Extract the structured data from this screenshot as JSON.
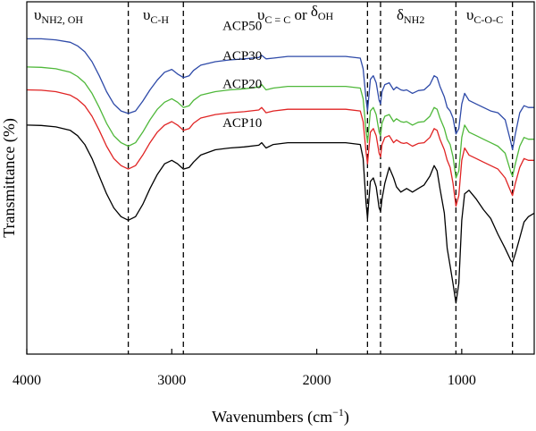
{
  "chart_data": {
    "type": "line",
    "title": "",
    "xlabel": "Wavenumbers (cm−1)",
    "ylabel": "Transmittance (%)",
    "xlim": [
      4000,
      500
    ],
    "x_reversed": true,
    "y_ticks_shown": false,
    "grid": false,
    "x_ticks": [
      4000,
      3000,
      2000,
      1000
    ],
    "x_tick_labels": [
      "4000",
      "3000",
      "2000",
      "1000"
    ],
    "band_markers": [
      {
        "label_main": "υ",
        "label_sub": "NH2, OH",
        "positions": [
          3300
        ]
      },
      {
        "label_main": "υ",
        "label_sub": "C-H",
        "positions": [
          2920
        ]
      },
      {
        "label_main": "υ",
        "label_sub": "C = C",
        "label_mid": " or ",
        "label_main2": "δ",
        "label_sub2": "OH",
        "positions": [
          1650
        ]
      },
      {
        "label_main": "δ",
        "label_sub": "NH2",
        "positions": [
          1560
        ]
      },
      {
        "label_main": "υ",
        "label_sub": "C-O-C",
        "positions": [
          1040,
          650
        ]
      }
    ],
    "series": [
      {
        "name": "ACP50",
        "color": "#2e4aa8",
        "x": [
          4000,
          3900,
          3800,
          3700,
          3650,
          3600,
          3550,
          3500,
          3450,
          3400,
          3350,
          3300,
          3250,
          3200,
          3150,
          3100,
          3050,
          3000,
          2960,
          2920,
          2880,
          2850,
          2800,
          2700,
          2600,
          2500,
          2400,
          2380,
          2350,
          2300,
          2200,
          2000,
          1800,
          1700,
          1680,
          1660,
          1650,
          1640,
          1630,
          1610,
          1590,
          1570,
          1560,
          1550,
          1530,
          1500,
          1470,
          1450,
          1420,
          1400,
          1380,
          1340,
          1300,
          1260,
          1220,
          1190,
          1170,
          1150,
          1120,
          1100,
          1080,
          1060,
          1040,
          1020,
          1000,
          980,
          950,
          900,
          850,
          800,
          750,
          700,
          660,
          650,
          630,
          600,
          570,
          540,
          500
        ],
        "y": [
          89.5,
          89.5,
          89.2,
          88.5,
          87.5,
          85.8,
          83.0,
          79.0,
          74.5,
          71.0,
          69.0,
          68.3,
          69.0,
          71.8,
          75.0,
          77.8,
          80.0,
          80.8,
          79.5,
          78.5,
          79.0,
          80.5,
          82.0,
          83.0,
          83.5,
          83.8,
          84.2,
          84.8,
          83.8,
          84.0,
          84.5,
          84.5,
          84.5,
          84.0,
          81.0,
          72.5,
          69.0,
          73.5,
          78.0,
          79.0,
          77.0,
          72.0,
          71.0,
          74.5,
          76.5,
          77.0,
          75.0,
          75.8,
          75.0,
          74.8,
          75.0,
          74.0,
          74.8,
          75.0,
          76.5,
          79.0,
          78.5,
          76.0,
          73.0,
          70.0,
          69.0,
          67.0,
          62.5,
          64.0,
          71.0,
          74.0,
          72.0,
          71.0,
          70.0,
          69.0,
          68.5,
          66.5,
          60.0,
          58.0,
          62.5,
          68.5,
          70.5,
          70.0,
          70.0
        ]
      },
      {
        "name": "ACP30",
        "color": "#4fb83a",
        "x": [
          4000,
          3900,
          3800,
          3700,
          3650,
          3600,
          3550,
          3500,
          3450,
          3400,
          3350,
          3300,
          3250,
          3200,
          3150,
          3100,
          3050,
          3000,
          2960,
          2920,
          2880,
          2850,
          2800,
          2700,
          2600,
          2500,
          2400,
          2380,
          2350,
          2300,
          2200,
          2000,
          1800,
          1700,
          1680,
          1660,
          1650,
          1640,
          1630,
          1610,
          1590,
          1570,
          1560,
          1550,
          1530,
          1500,
          1470,
          1450,
          1420,
          1400,
          1380,
          1340,
          1300,
          1260,
          1220,
          1190,
          1170,
          1150,
          1120,
          1100,
          1080,
          1060,
          1040,
          1020,
          1000,
          980,
          950,
          900,
          850,
          800,
          750,
          700,
          660,
          650,
          630,
          600,
          570,
          540,
          500
        ],
        "y": [
          81.5,
          81.4,
          81.0,
          80.0,
          78.8,
          77.0,
          74.0,
          70.0,
          65.5,
          62.0,
          60.0,
          59.0,
          60.0,
          63.0,
          66.5,
          69.5,
          71.5,
          72.5,
          71.5,
          70.0,
          70.5,
          72.0,
          73.5,
          74.5,
          75.0,
          75.3,
          75.8,
          76.5,
          75.0,
          75.5,
          76.0,
          76.0,
          76.0,
          75.5,
          72.5,
          63.5,
          60.0,
          64.5,
          69.0,
          70.0,
          68.0,
          63.0,
          62.0,
          65.5,
          67.5,
          68.0,
          66.0,
          66.8,
          66.0,
          65.8,
          66.0,
          65.0,
          65.8,
          66.0,
          67.5,
          70.0,
          69.5,
          67.0,
          64.0,
          61.0,
          59.5,
          56.0,
          50.0,
          52.0,
          61.5,
          65.0,
          63.0,
          62.0,
          61.0,
          60.0,
          59.0,
          57.0,
          51.5,
          50.5,
          54.0,
          59.0,
          61.5,
          61.0,
          61.0
        ]
      },
      {
        "name": "ACP20",
        "color": "#e02424",
        "x": [
          4000,
          3900,
          3800,
          3700,
          3650,
          3600,
          3550,
          3500,
          3450,
          3400,
          3350,
          3300,
          3250,
          3200,
          3150,
          3100,
          3050,
          3000,
          2960,
          2920,
          2880,
          2850,
          2800,
          2700,
          2600,
          2500,
          2400,
          2380,
          2350,
          2300,
          2200,
          2000,
          1800,
          1700,
          1680,
          1660,
          1650,
          1640,
          1630,
          1610,
          1590,
          1570,
          1560,
          1550,
          1530,
          1500,
          1470,
          1450,
          1420,
          1400,
          1380,
          1340,
          1300,
          1260,
          1220,
          1190,
          1170,
          1150,
          1120,
          1100,
          1080,
          1060,
          1040,
          1020,
          1000,
          980,
          950,
          900,
          850,
          800,
          750,
          700,
          660,
          650,
          630,
          600,
          570,
          540,
          500
        ],
        "y": [
          75.0,
          74.9,
          74.5,
          73.5,
          72.3,
          70.5,
          67.5,
          63.5,
          59.0,
          55.5,
          53.5,
          52.5,
          53.5,
          56.5,
          60.0,
          63.0,
          65.0,
          66.0,
          65.0,
          63.5,
          64.0,
          65.5,
          67.0,
          68.0,
          68.5,
          68.8,
          69.3,
          70.0,
          68.5,
          69.0,
          69.5,
          69.5,
          69.5,
          69.0,
          66.0,
          57.5,
          54.0,
          58.5,
          63.0,
          64.0,
          62.0,
          57.0,
          56.0,
          59.5,
          61.5,
          62.0,
          60.0,
          60.8,
          60.0,
          59.8,
          60.0,
          59.0,
          59.8,
          60.0,
          61.5,
          64.0,
          63.5,
          61.0,
          58.0,
          55.0,
          53.0,
          48.5,
          42.0,
          45.0,
          55.0,
          58.5,
          56.5,
          55.5,
          54.5,
          53.5,
          52.5,
          50.0,
          46.0,
          45.0,
          48.5,
          53.0,
          55.5,
          55.0,
          55.0
        ]
      },
      {
        "name": "ACP10",
        "color": "#000000",
        "x": [
          4000,
          3900,
          3800,
          3700,
          3650,
          3600,
          3550,
          3500,
          3450,
          3400,
          3350,
          3300,
          3250,
          3200,
          3150,
          3100,
          3050,
          3000,
          2960,
          2920,
          2880,
          2850,
          2800,
          2700,
          2600,
          2500,
          2400,
          2380,
          2350,
          2300,
          2200,
          2000,
          1800,
          1700,
          1680,
          1660,
          1650,
          1640,
          1630,
          1610,
          1590,
          1570,
          1560,
          1550,
          1530,
          1500,
          1470,
          1450,
          1420,
          1400,
          1380,
          1340,
          1300,
          1260,
          1220,
          1190,
          1170,
          1150,
          1120,
          1100,
          1080,
          1060,
          1040,
          1020,
          1000,
          980,
          950,
          900,
          850,
          800,
          750,
          700,
          660,
          650,
          630,
          600,
          570,
          540,
          500
        ],
        "y": [
          65.0,
          64.9,
          64.5,
          63.5,
          62.0,
          59.5,
          55.5,
          50.5,
          45.5,
          41.5,
          39.0,
          38.0,
          39.0,
          42.5,
          47.0,
          51.0,
          54.0,
          55.0,
          54.0,
          52.5,
          53.0,
          54.5,
          56.5,
          58.0,
          58.5,
          58.8,
          59.3,
          60.0,
          58.5,
          59.5,
          60.0,
          60.0,
          60.0,
          59.5,
          55.5,
          43.0,
          38.5,
          44.0,
          49.0,
          50.0,
          47.5,
          41.5,
          40.5,
          44.0,
          48.5,
          53.0,
          50.0,
          47.5,
          46.0,
          46.5,
          47.0,
          46.0,
          47.0,
          48.0,
          50.5,
          53.5,
          52.0,
          47.0,
          40.0,
          30.0,
          25.0,
          20.0,
          14.5,
          20.0,
          38.0,
          45.5,
          46.5,
          44.0,
          41.0,
          38.5,
          34.0,
          30.0,
          26.5,
          26.0,
          28.5,
          33.0,
          37.5,
          39.0,
          40.0
        ]
      }
    ],
    "series_labels": [
      {
        "name": "ACP50",
        "x": 2650,
        "y": 92.0
      },
      {
        "name": "ACP30",
        "x": 2650,
        "y": 83.5
      },
      {
        "name": "ACP20",
        "x": 2650,
        "y": 75.5
      },
      {
        "name": "ACP10",
        "x": 2650,
        "y": 64.5
      }
    ]
  }
}
